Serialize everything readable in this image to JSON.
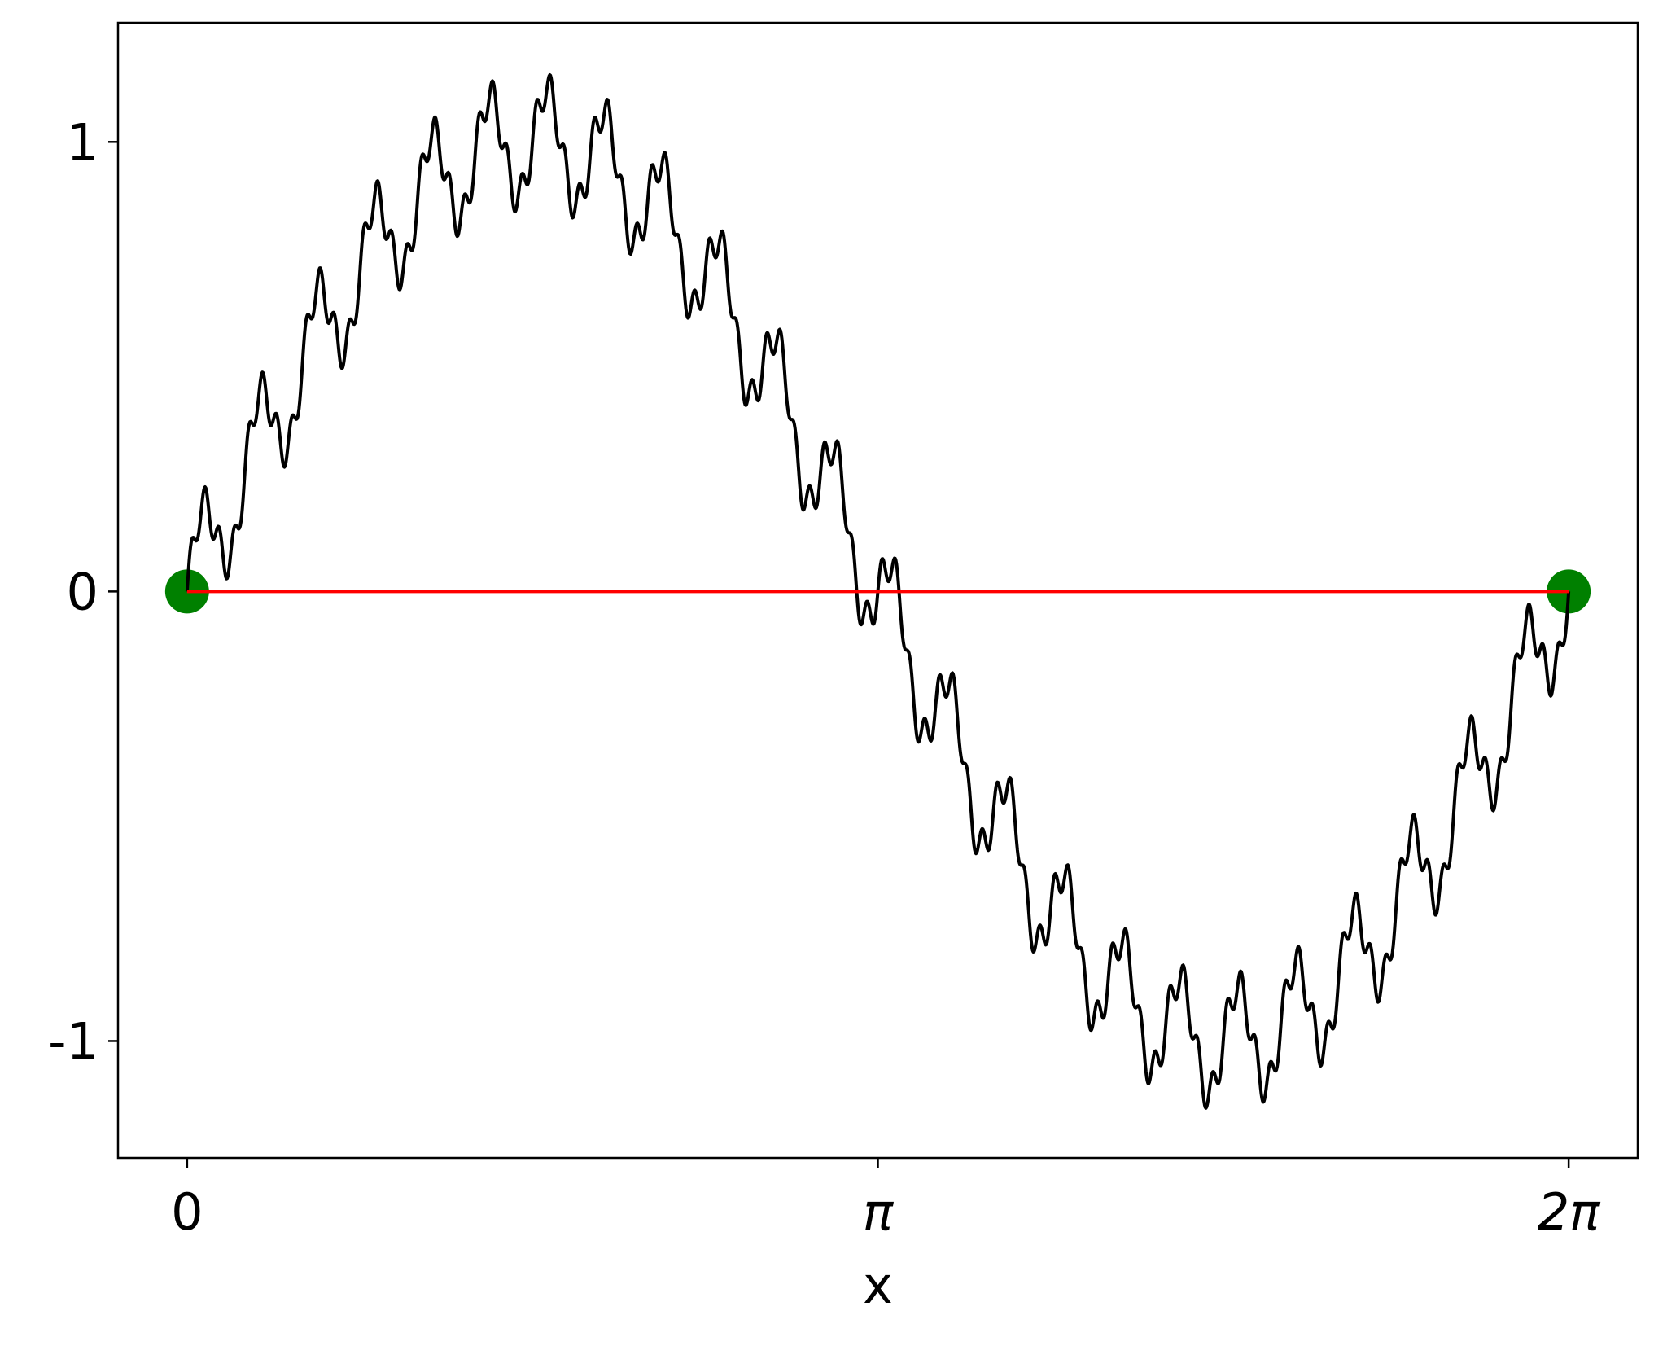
{
  "chart_data": {
    "type": "line",
    "xlabel": "x",
    "ylabel": "",
    "title": "",
    "xlim": [
      -0.3141592653589793,
      6.597344572538566
    ],
    "ylim": [
      -1.26,
      1.265
    ],
    "x_ticks": [
      {
        "value": 0,
        "label": "0",
        "italic": false
      },
      {
        "value": 3.141592653589793,
        "label": "π",
        "italic": true
      },
      {
        "value": 6.283185307179586,
        "label": "2π",
        "italic": true
      }
    ],
    "y_ticks": [
      {
        "value": 1,
        "label": "1"
      },
      {
        "value": 0,
        "label": "0"
      },
      {
        "value": -1,
        "label": "-1"
      }
    ],
    "grid": false,
    "series": [
      {
        "role": "curve",
        "color": "#000000",
        "x_range": [
          0,
          6.283185307179586
        ],
        "samples": 2000,
        "model": {
          "base": "sin(x)",
          "harmonics": [
            {
              "amplitude": 0.12,
              "frequency": 24
            },
            {
              "amplitude": 0.04,
              "frequency": 96
            }
          ]
        }
      },
      {
        "role": "chord",
        "color": "#ff0000",
        "x": [
          0,
          6.283185307179586
        ],
        "y": [
          0,
          0
        ]
      }
    ],
    "points": [
      {
        "x": 0,
        "y": 0,
        "color": "#008000"
      },
      {
        "x": 6.283185307179586,
        "y": 0,
        "color": "#008000"
      }
    ]
  }
}
